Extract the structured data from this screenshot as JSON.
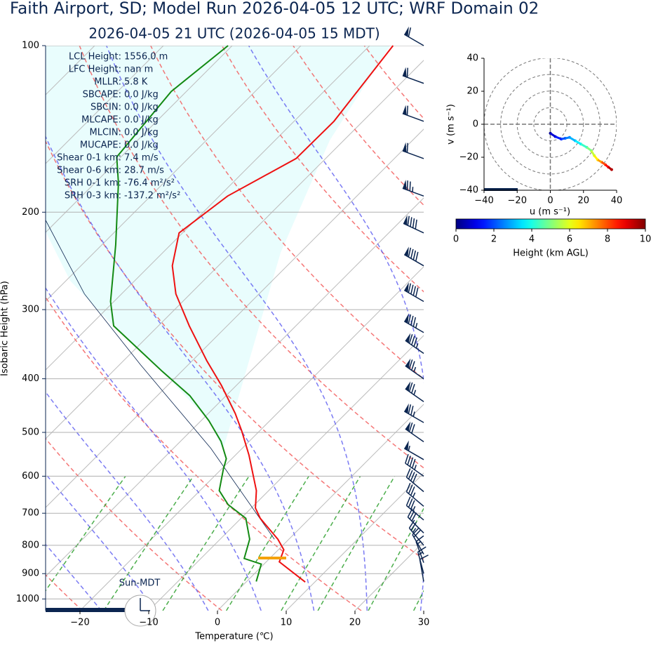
{
  "chart_data": [
    {
      "type": "skewt",
      "title": "Faith Airport, SD; Model Run 2026-04-05 12 UTC; WRF Domain 02",
      "subtitle": "2026-04-05 21 UTC  (2026-04-05 15 MDT)",
      "xlabel": "Temperature (℃)",
      "ylabel": "Isobaric Height (hPa)",
      "xlim": [
        -25,
        30
      ],
      "ylim": [
        1050,
        100
      ],
      "yscale": "log",
      "skew_angle": 45,
      "grid": true,
      "xticks": [
        {
          "value": -20,
          "label": "−20"
        },
        {
          "value": -10,
          "label": "−10"
        },
        0,
        10,
        20,
        30
      ],
      "yticks": [
        100,
        200,
        300,
        400,
        500,
        600,
        700,
        800,
        900,
        1000
      ],
      "series": [
        {
          "color": "#ee1111",
          "pressure": [
            932,
            857,
            815,
            780,
            715,
            685,
            637,
            550,
            497,
            462,
            411,
            371,
            321,
            281,
            250,
            218,
            187,
            160,
            137,
            117,
            100
          ],
          "values": [
            8.6,
            1.9,
            0.8,
            -1.6,
            -7.2,
            -9.4,
            -11.8,
            -18.0,
            -22.6,
            -26.1,
            -32.2,
            -37.9,
            -45.5,
            -52.1,
            -56.7,
            -60.5,
            -58.8,
            -54.3,
            -54.2,
            -55.4,
            -56.6
          ]
        },
        {
          "color": "#138a13",
          "pressure": [
            930,
            865,
            845,
            780,
            715,
            675,
            637,
            583,
            558,
            519,
            476,
            429,
            388,
            321,
            290,
            229,
            177,
            159,
            121,
            100
          ],
          "values": [
            1.4,
            -0.4,
            -3.7,
            -5.7,
            -9.3,
            -13.9,
            -17.2,
            -19.7,
            -20.8,
            -24.1,
            -28.9,
            -35.3,
            -42.8,
            -56.5,
            -60.5,
            -68.0,
            -76.6,
            -80.6,
            -82.2,
            -80.6
          ]
        },
        {
          "color": "#0b2550",
          "pressure": [
            780,
            534,
            377,
            281,
            207
          ],
          "values": [
            -2.1,
            -24.6,
            -47.0,
            -65.4,
            -81.7
          ]
        }
      ],
      "stats": [
        {
          "key": "LCL Height:",
          "value": "1556.0 m"
        },
        {
          "key": "LFC Height:",
          "value": "nan m"
        },
        {
          "key": "MLLR:",
          "value": "5.8 K"
        },
        {
          "key": "SBCAPE:",
          "value": "0.0 J/kg"
        },
        {
          "key": "SBCIN:",
          "value": "0.0 J/kg"
        },
        {
          "key": "MLCAPE:",
          "value": "0.0 J/kg"
        },
        {
          "key": "MLCIN:",
          "value": "0.0 J/kg"
        },
        {
          "key": "MUCAPE:",
          "value": "0.0 J/kg"
        },
        {
          "key": "Shear 0-1 km:",
          "value": "7.4 m/s"
        },
        {
          "key": "Shear 0-6 km:",
          "value": "28.7 m/s"
        },
        {
          "key": "SRH 0-1 km:",
          "value": "-76.4 m²/s²"
        },
        {
          "key": "SRH 0-3 km:",
          "value": "-137.2 m²/s²"
        }
      ],
      "timezone_label": "Sun-MDT",
      "wind_barbs": {
        "color": "#0b2550",
        "pressure": [
          100,
          117,
          137,
          160,
          187,
          218,
          250,
          290,
          330,
          360,
          400,
          440,
          480,
          520,
          560,
          600,
          640,
          680,
          720,
          760,
          800,
          830,
          860,
          900,
          930
        ],
        "speed": [
          60,
          60,
          60,
          60,
          75,
          90,
          90,
          90,
          85,
          85,
          75,
          75,
          75,
          70,
          55,
          45,
          40,
          35,
          35,
          30,
          25,
          20,
          15,
          15,
          10
        ],
        "direction": [
          300,
          290,
          290,
          290,
          290,
          295,
          300,
          300,
          300,
          305,
          305,
          305,
          300,
          305,
          300,
          305,
          310,
          310,
          310,
          315,
          320,
          330,
          340,
          345,
          350
        ]
      }
    },
    {
      "type": "hodograph",
      "xlabel": "u (m s⁻¹)",
      "ylabel": "v (m s⁻¹)",
      "xlim": [
        -40,
        40
      ],
      "ylim": [
        -40,
        40
      ],
      "xticks": [
        {
          "value": -40,
          "label": "−40"
        },
        {
          "value": -20,
          "label": "−20"
        },
        0,
        20,
        40
      ],
      "yticks": [
        40,
        20,
        0,
        {
          "value": -20,
          "label": "−20"
        },
        {
          "value": -40,
          "label": "−40"
        }
      ],
      "rings": [
        10,
        20,
        30,
        40
      ],
      "u": [
        0,
        3,
        6.6,
        9,
        11.6,
        15,
        18.4,
        22,
        24.7,
        26.5,
        28.6,
        31,
        33.2,
        35,
        37
      ],
      "v": [
        -5.5,
        -7.5,
        -9,
        -8.5,
        -8,
        -10,
        -12,
        -14,
        -16,
        -19,
        -21.6,
        -23,
        -24.5,
        -26,
        -27.5
      ],
      "height": [
        0.2,
        0.8,
        1.5,
        2,
        2.5,
        3,
        3.6,
        4.3,
        5,
        5.7,
        6.4,
        7.2,
        8,
        8.7,
        9.5
      ],
      "colorbar": {
        "label": "Height (km AGL)",
        "colormap": "jet",
        "lim": [
          0,
          10
        ],
        "ticks": [
          0,
          2,
          4,
          6,
          8,
          10
        ]
      }
    }
  ]
}
